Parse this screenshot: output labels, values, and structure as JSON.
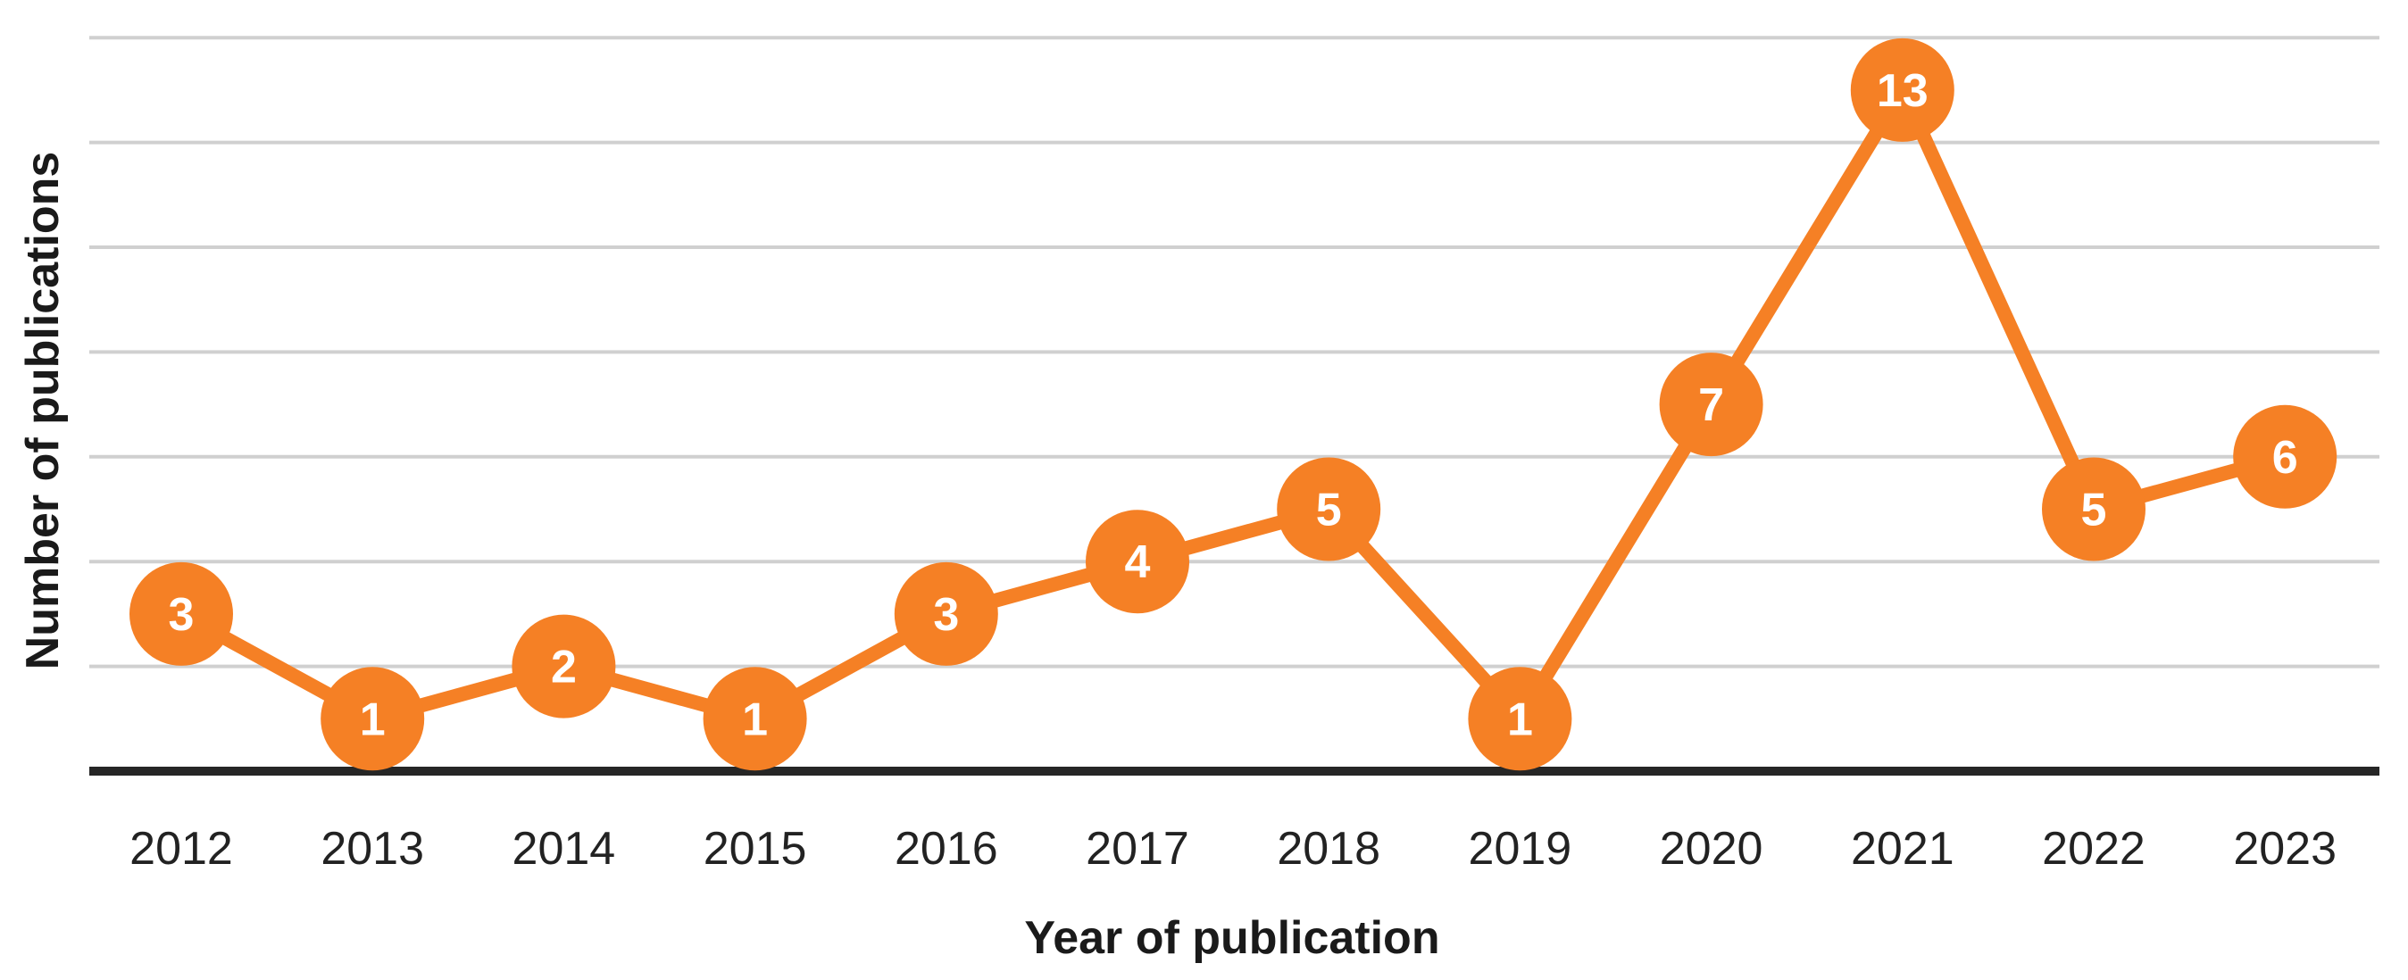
{
  "chart_data": {
    "type": "line",
    "title": "",
    "xlabel": "Year of publication",
    "ylabel": "Number of publications",
    "categories": [
      "2012",
      "2013",
      "2014",
      "2015",
      "2016",
      "2017",
      "2018",
      "2019",
      "2020",
      "2021",
      "2022",
      "2023"
    ],
    "series": [
      {
        "values": [
          3,
          1,
          2,
          1,
          3,
          4,
          5,
          1,
          7,
          13,
          5,
          6
        ],
        "color": "#F58025"
      }
    ],
    "ylim": [
      0,
      14
    ],
    "y_gridline_step": 2,
    "y_tick_labels_shown": false,
    "grid": true,
    "legend": "none",
    "data_labels": true
  }
}
